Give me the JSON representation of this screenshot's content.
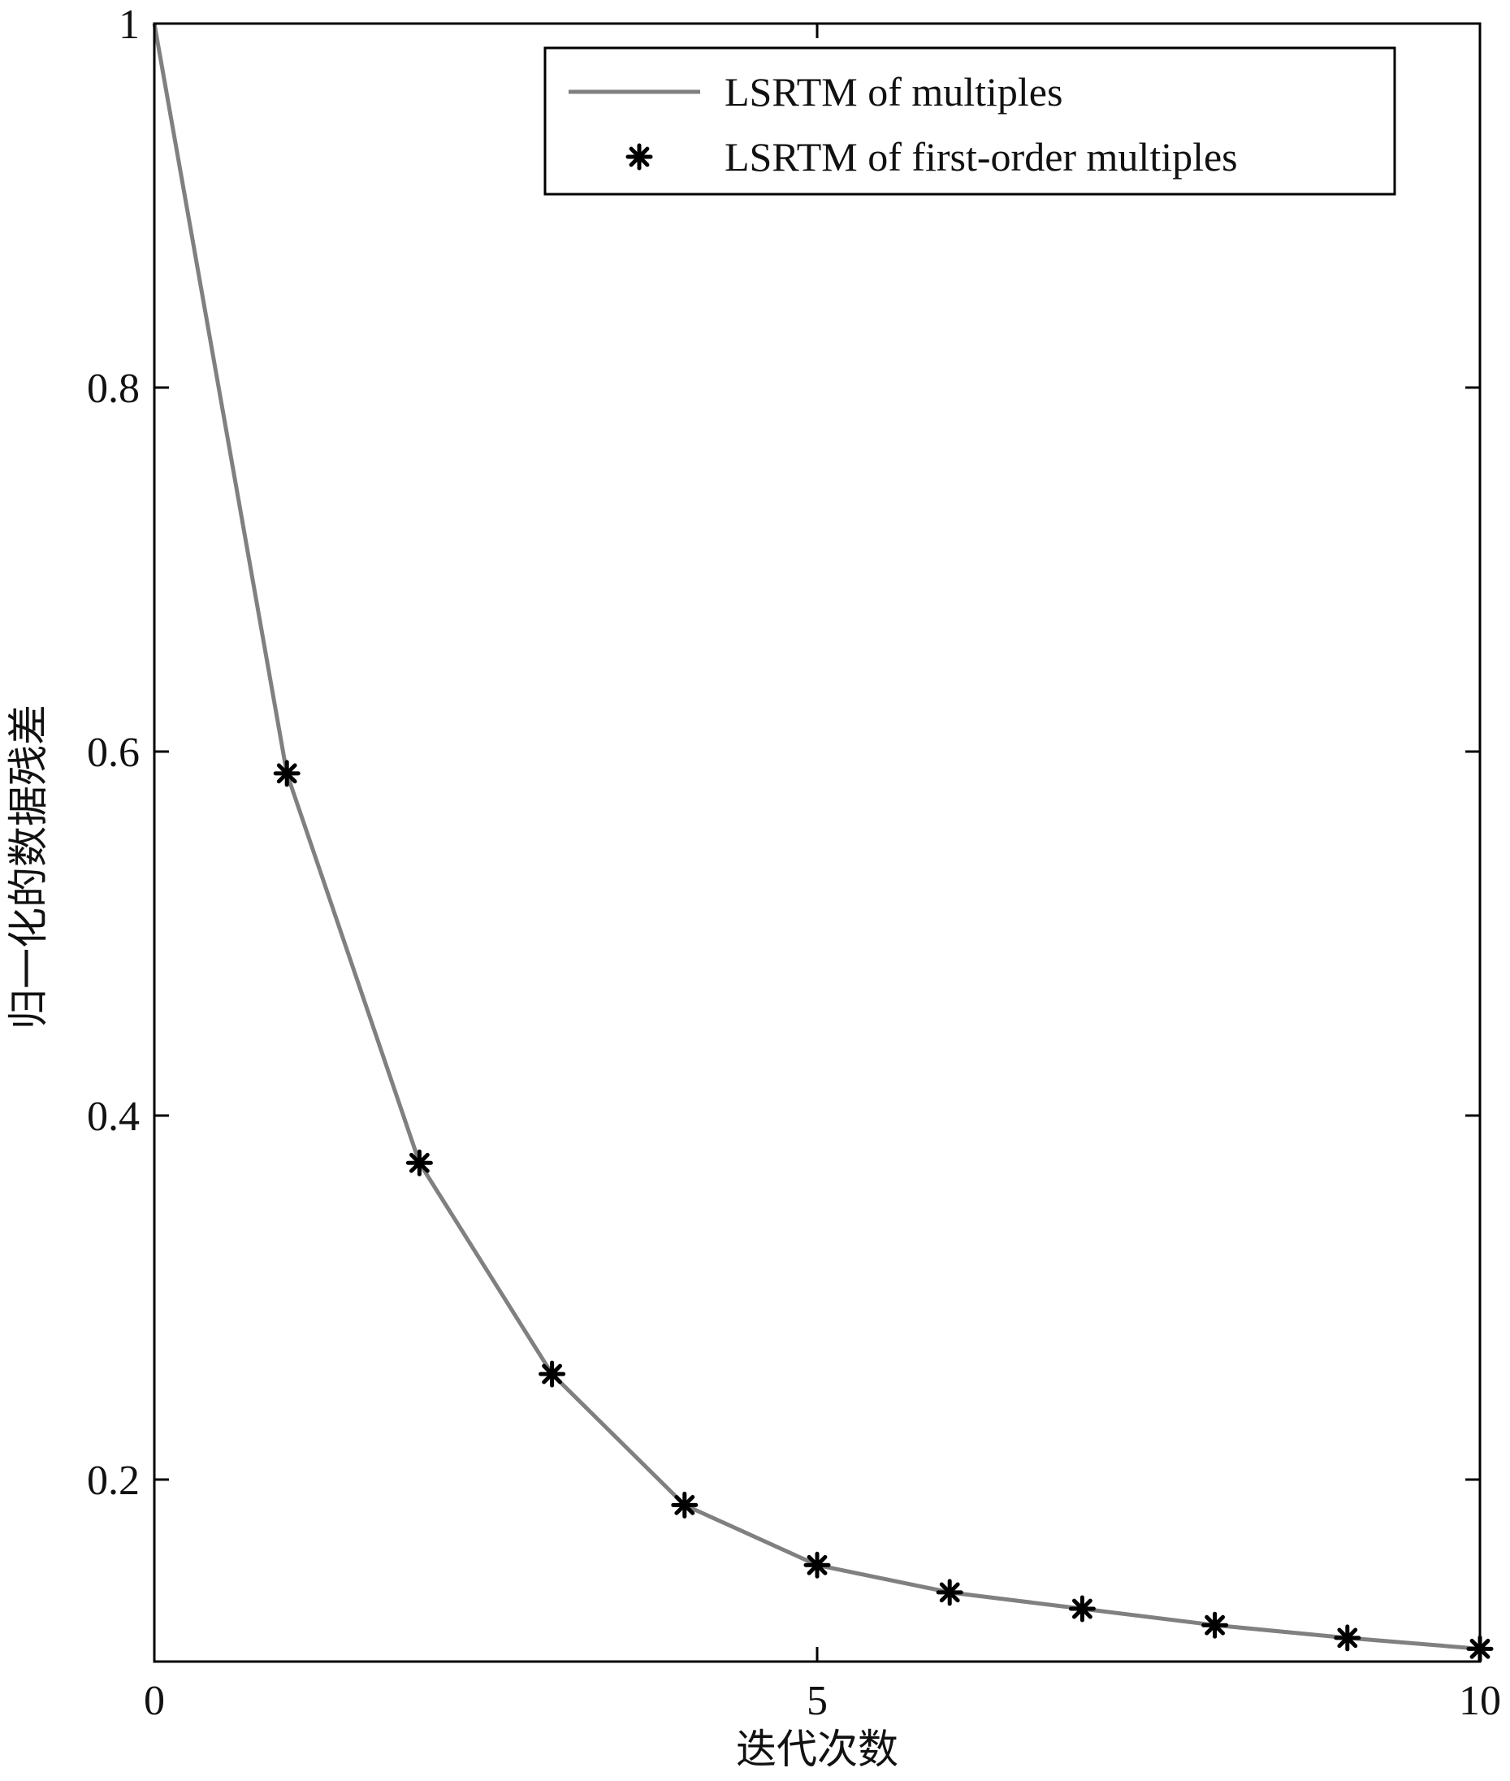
{
  "chart_data": {
    "type": "line",
    "xlabel": "迭代次数",
    "ylabel": "归一化的数据残差",
    "xlim": [
      0,
      10
    ],
    "ylim": [
      0.1,
      1.0
    ],
    "xticks": [
      0,
      5,
      10
    ],
    "xtick_labels": [
      "0",
      "5",
      "10"
    ],
    "yticks": [
      0.2,
      0.4,
      0.6,
      0.8,
      1.0
    ],
    "ytick_labels": [
      "0.2",
      "0.4",
      "0.6",
      "0.8",
      "1"
    ],
    "grid": false,
    "legend_position": "top-right",
    "x": [
      0,
      1,
      2,
      3,
      4,
      5,
      6,
      7,
      8,
      9,
      10
    ],
    "series": [
      {
        "name": "LSRTM of multiples",
        "style": "line",
        "color": "#808080",
        "values": [
          1.0,
          0.588,
          0.374,
          0.258,
          0.186,
          0.153,
          0.138,
          0.129,
          0.12,
          0.113,
          0.107
        ]
      },
      {
        "name": "LSRTM of first-order multiples",
        "style": "asterisk-marker",
        "color": "#000000",
        "x": [
          1,
          2,
          3,
          4,
          5,
          6,
          7,
          8,
          9,
          10
        ],
        "values": [
          0.588,
          0.374,
          0.258,
          0.186,
          0.153,
          0.138,
          0.129,
          0.12,
          0.113,
          0.107
        ]
      }
    ]
  }
}
